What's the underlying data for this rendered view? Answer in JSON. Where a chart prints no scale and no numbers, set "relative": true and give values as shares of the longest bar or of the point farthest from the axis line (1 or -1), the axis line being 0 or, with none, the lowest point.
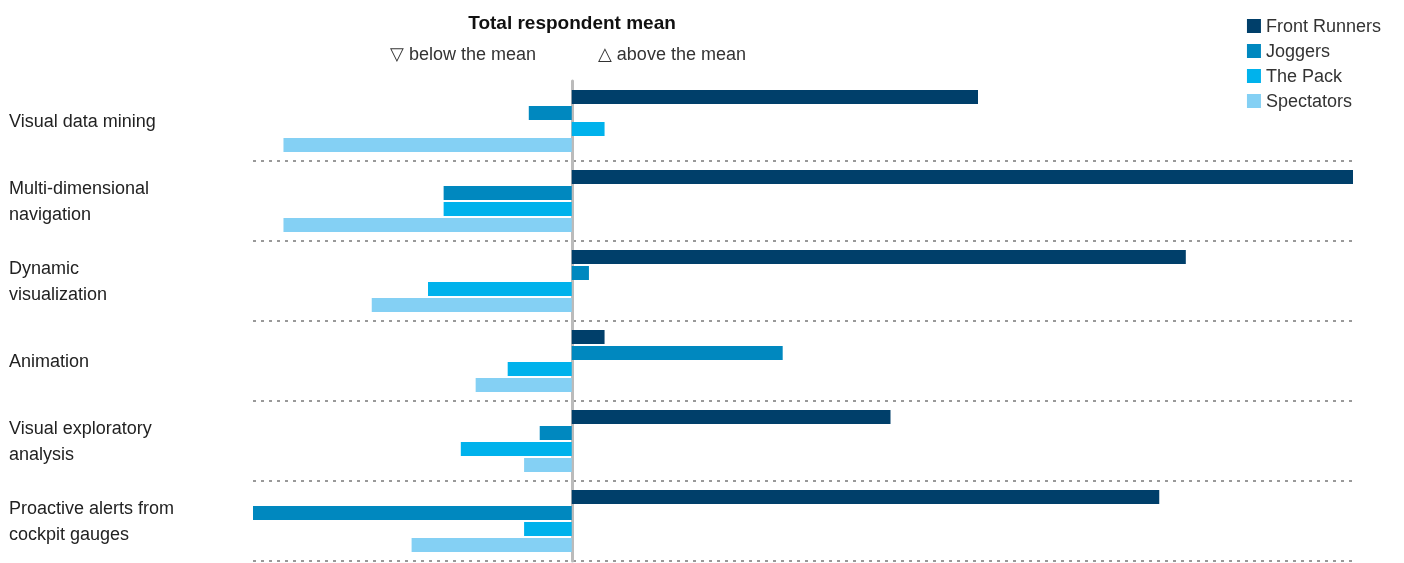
{
  "chart_data": {
    "type": "bar",
    "orientation": "horizontal",
    "relative": true,
    "title": "Total respondent mean",
    "annotations": [
      "▽ below the mean",
      "△ above the mean"
    ],
    "categories": [
      "Visual data mining",
      "Multi-dimensional\nnavigation",
      "Dynamic\nvisualization",
      "Animation",
      "Visual exploratory\nanalysis",
      "Proactive alerts from\ncockpit gauges"
    ],
    "series": [
      {
        "name": "Front Runners",
        "color": "#003f6a",
        "values": [
          0.52,
          1,
          0.786,
          0.042,
          0.408,
          0.752
        ]
      },
      {
        "name": "Joggers",
        "color": "#0088bf",
        "values": [
          -0.055,
          -0.164,
          0.022,
          0.27,
          -0.041,
          -0.408
        ]
      },
      {
        "name": "The Pack",
        "color": "#00b2ec",
        "values": [
          0.042,
          -0.164,
          -0.184,
          -0.082,
          -0.142,
          -0.061
        ]
      },
      {
        "name": "Spectators",
        "color": "#84d0f4",
        "values": [
          -0.369,
          -0.369,
          -0.256,
          -0.123,
          -0.061,
          -0.205
        ]
      }
    ],
    "grid": "y",
    "legend": "top right"
  }
}
